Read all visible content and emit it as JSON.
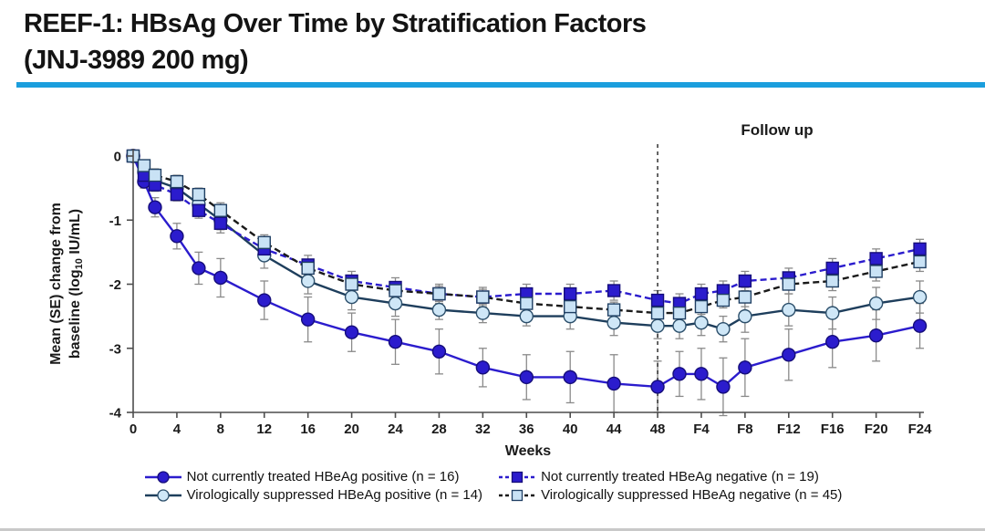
{
  "page": {
    "title_line1": "REEF-1: HBsAg Over Time by Stratification Factors",
    "title_line2": "(JNJ-3989 200 mg)",
    "accent_color": "#1b9edd"
  },
  "chart_data": {
    "type": "line",
    "xlabel": "Weeks",
    "ylabel_line1": "Mean (SE) change from",
    "ylabel_line2_pre": "baseline (log",
    "ylabel_sub": "10",
    "ylabel_line2_post": " IU/mL)",
    "ylim": [
      -4,
      0
    ],
    "ytick_labels": [
      "0",
      "-1",
      "-2",
      "-3",
      "-4"
    ],
    "yticks": [
      0,
      -1,
      -2,
      -3,
      -4
    ],
    "xtick_labels": [
      "0",
      "4",
      "8",
      "12",
      "16",
      "20",
      "24",
      "28",
      "32",
      "36",
      "40",
      "44",
      "48",
      "F4",
      "F8",
      "F12",
      "F16",
      "F20",
      "F24"
    ],
    "xtick_weeks": [
      0,
      4,
      8,
      12,
      16,
      20,
      24,
      28,
      32,
      36,
      40,
      44,
      48,
      52,
      56,
      60,
      64,
      68,
      72
    ],
    "followup_label": "Follow up",
    "followup_divider_week": 48,
    "error_bar_color": "#8a8a8a",
    "x_weeks": [
      0,
      1,
      2,
      4,
      6,
      8,
      12,
      16,
      20,
      24,
      28,
      32,
      36,
      40,
      44,
      48,
      50,
      52,
      54,
      56,
      60,
      64,
      68,
      72
    ],
    "series": [
      {
        "name": "Not currently treated HBeAg positive (n = 16)",
        "marker": "circle",
        "fill_mode": "filled",
        "line_style": "solid",
        "color": "#2b1ccd",
        "marker_fill": "#2b1ccd",
        "marker_stroke": "#150d7a",
        "values": [
          0,
          -0.4,
          -0.8,
          -1.25,
          -1.75,
          -1.9,
          -2.25,
          -2.55,
          -2.75,
          -2.9,
          -3.05,
          -3.3,
          -3.45,
          -3.45,
          -3.55,
          -3.6,
          -3.4,
          -3.4,
          -3.6,
          -3.3,
          -3.1,
          -2.9,
          -2.8,
          -2.65
        ],
        "se": [
          0.05,
          0.1,
          0.15,
          0.2,
          0.25,
          0.3,
          0.3,
          0.35,
          0.3,
          0.35,
          0.35,
          0.3,
          0.35,
          0.4,
          0.45,
          0.4,
          0.35,
          0.4,
          0.45,
          0.45,
          0.4,
          0.4,
          0.4,
          0.35
        ]
      },
      {
        "name": "Not currently treated HBeAg negative (n = 19)",
        "marker": "square",
        "fill_mode": "filled",
        "line_style": "dashed",
        "color": "#2b1ccd",
        "marker_fill": "#2b1ccd",
        "marker_stroke": "#150d7a",
        "values": [
          0,
          -0.3,
          -0.45,
          -0.6,
          -0.85,
          -1.05,
          -1.45,
          -1.7,
          -1.95,
          -2.05,
          -2.15,
          -2.2,
          -2.15,
          -2.15,
          -2.1,
          -2.25,
          -2.3,
          -2.15,
          -2.1,
          -1.95,
          -1.9,
          -1.75,
          -1.6,
          -1.45
        ],
        "se": [
          0.05,
          0.1,
          0.1,
          0.1,
          0.12,
          0.15,
          0.15,
          0.15,
          0.15,
          0.15,
          0.15,
          0.15,
          0.15,
          0.15,
          0.15,
          0.15,
          0.15,
          0.15,
          0.15,
          0.15,
          0.15,
          0.15,
          0.15,
          0.15
        ]
      },
      {
        "name": "Virologically suppressed HBeAg positive (n = 14)",
        "marker": "circle",
        "fill_mode": "open",
        "line_style": "solid",
        "color": "#1e3e5c",
        "marker_fill": "#cfe7f7",
        "marker_stroke": "#2c4f6b",
        "values": [
          0,
          -0.25,
          -0.38,
          -0.5,
          -0.75,
          -1.0,
          -1.55,
          -1.95,
          -2.2,
          -2.3,
          -2.4,
          -2.45,
          -2.5,
          -2.5,
          -2.6,
          -2.65,
          -2.65,
          -2.6,
          -2.7,
          -2.5,
          -2.4,
          -2.45,
          -2.3,
          -2.2
        ],
        "se": [
          0.05,
          0.1,
          0.1,
          0.12,
          0.15,
          0.15,
          0.2,
          0.2,
          0.2,
          0.2,
          0.15,
          0.15,
          0.15,
          0.2,
          0.2,
          0.2,
          0.2,
          0.2,
          0.2,
          0.25,
          0.25,
          0.25,
          0.25,
          0.25
        ]
      },
      {
        "name": "Virologically suppressed HBeAg negative (n = 45)",
        "marker": "square",
        "fill_mode": "open",
        "line_style": "dashed",
        "color": "#1a1a1a",
        "marker_fill": "#c9e2f5",
        "marker_stroke": "#1f3f63",
        "values": [
          0,
          -0.15,
          -0.3,
          -0.4,
          -0.6,
          -0.85,
          -1.35,
          -1.75,
          -2.0,
          -2.1,
          -2.15,
          -2.2,
          -2.3,
          -2.35,
          -2.4,
          -2.45,
          -2.45,
          -2.35,
          -2.25,
          -2.2,
          -2.0,
          -1.95,
          -1.8,
          -1.65
        ],
        "se": [
          0.05,
          0.08,
          0.1,
          0.1,
          0.1,
          0.12,
          0.12,
          0.12,
          0.12,
          0.12,
          0.12,
          0.12,
          0.12,
          0.12,
          0.12,
          0.12,
          0.12,
          0.12,
          0.12,
          0.15,
          0.15,
          0.15,
          0.15,
          0.15
        ]
      }
    ]
  }
}
